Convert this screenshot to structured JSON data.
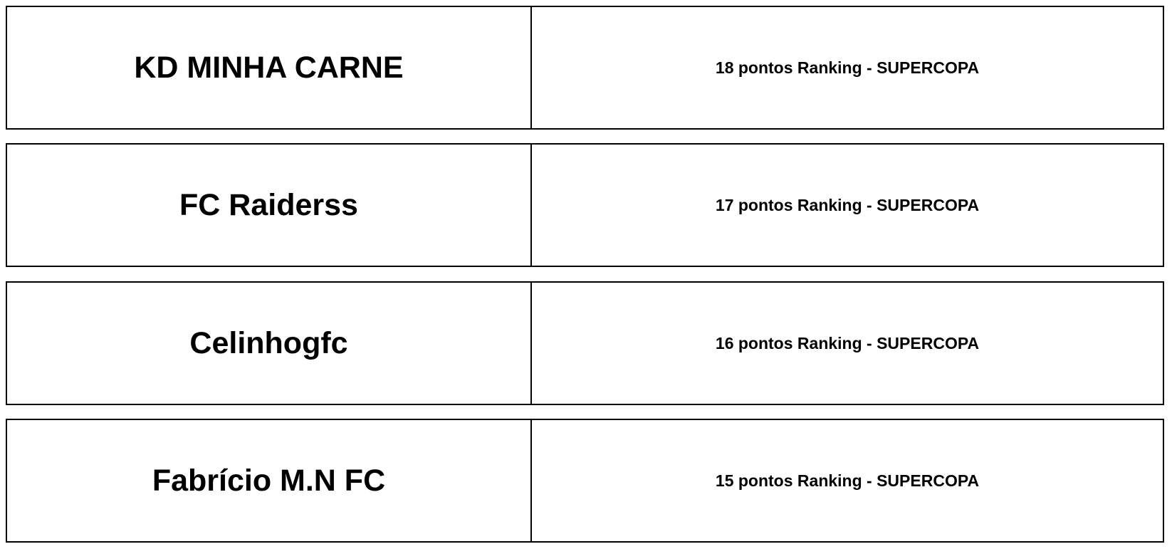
{
  "rows": [
    {
      "team": "KD MINHA CARNE",
      "points": "18 pontos Ranking - SUPERCOPA"
    },
    {
      "team": "FC Raiderss",
      "points": "17 pontos Ranking - SUPERCOPA"
    },
    {
      "team": "Celinhogfc",
      "points": "16 pontos Ranking - SUPERCOPA"
    },
    {
      "team": "Fabrício M.N FC",
      "points": "15 pontos Ranking - SUPERCOPA"
    }
  ]
}
